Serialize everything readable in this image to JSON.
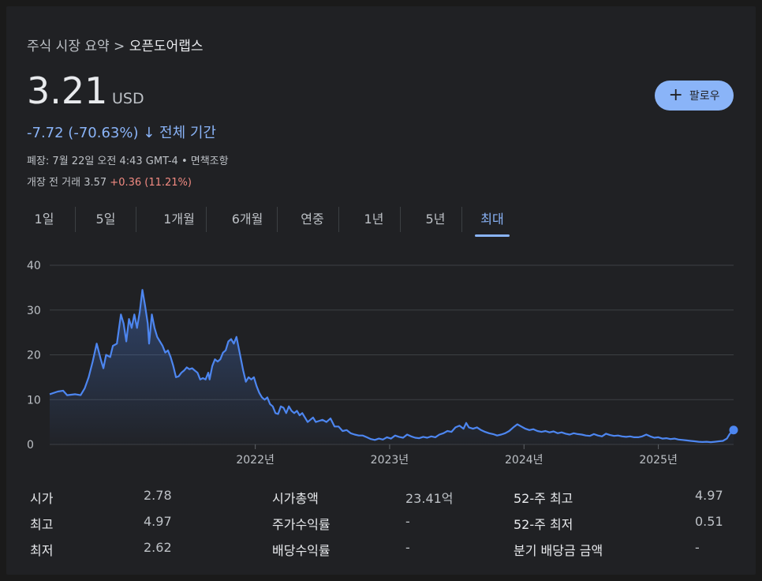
{
  "breadcrumb": {
    "prefix": "주식 시장 요약 >",
    "current": "오픈도어랩스"
  },
  "quote": {
    "price": "3.21",
    "currency": "USD",
    "change": "-7.72 (-70.63%)",
    "change_arrow": "↓",
    "period": "전체 기간",
    "closed_info": "폐장: 7월 22일 오전 4:43 GMT-4 • 면책조항",
    "premarket_prefix": "개장 전 거래 3.57",
    "premarket_change": "+0.36 (11.21%)"
  },
  "follow_button": {
    "icon": "plus-icon",
    "label": "팔로우"
  },
  "tabs": [
    "1일",
    "5일",
    "1개월",
    "6개월",
    "연중",
    "1년",
    "5년",
    "최대"
  ],
  "active_tab": "최대",
  "colors": {
    "accent": "#8ab4f8",
    "line": "#4d86f0",
    "positive": "#f28b82",
    "background": "#202124"
  },
  "chart_data": {
    "type": "area",
    "title": "",
    "xlabel": "",
    "ylabel": "",
    "ylim": [
      0,
      40
    ],
    "yticks": [
      0,
      10,
      20,
      30,
      40
    ],
    "xticks": [
      {
        "label": "2022년",
        "x": 2022.0
      },
      {
        "label": "2023년",
        "x": 2023.0
      },
      {
        "label": "2024년",
        "x": 2024.0
      },
      {
        "label": "2025년",
        "x": 2025.0
      }
    ],
    "xlim": [
      2020.47,
      2025.56
    ],
    "grid": true,
    "series": [
      {
        "points": [
          [
            2020.47,
            11.2
          ],
          [
            2020.53,
            11.8
          ],
          [
            2020.57,
            12.0
          ],
          [
            2020.6,
            11.0
          ],
          [
            2020.66,
            11.2
          ],
          [
            2020.7,
            11.0
          ],
          [
            2020.73,
            12.5
          ],
          [
            2020.76,
            15.0
          ],
          [
            2020.79,
            18.5
          ],
          [
            2020.82,
            22.5
          ],
          [
            2020.85,
            19.0
          ],
          [
            2020.87,
            17.0
          ],
          [
            2020.89,
            20.0
          ],
          [
            2020.92,
            19.5
          ],
          [
            2020.94,
            22.0
          ],
          [
            2020.97,
            22.5
          ],
          [
            2021.0,
            29.0
          ],
          [
            2021.02,
            27.0
          ],
          [
            2021.04,
            23.0
          ],
          [
            2021.06,
            28.0
          ],
          [
            2021.08,
            26.0
          ],
          [
            2021.1,
            29.0
          ],
          [
            2021.12,
            26.0
          ],
          [
            2021.14,
            29.5
          ],
          [
            2021.16,
            34.5
          ],
          [
            2021.18,
            31.0
          ],
          [
            2021.2,
            27.0
          ],
          [
            2021.21,
            22.5
          ],
          [
            2021.23,
            29.0
          ],
          [
            2021.25,
            26.0
          ],
          [
            2021.27,
            24.0
          ],
          [
            2021.29,
            23.0
          ],
          [
            2021.31,
            22.0
          ],
          [
            2021.33,
            20.5
          ],
          [
            2021.35,
            21.0
          ],
          [
            2021.37,
            19.5
          ],
          [
            2021.39,
            17.5
          ],
          [
            2021.41,
            15.0
          ],
          [
            2021.43,
            15.2
          ],
          [
            2021.45,
            16.0
          ],
          [
            2021.47,
            16.5
          ],
          [
            2021.49,
            17.2
          ],
          [
            2021.51,
            16.8
          ],
          [
            2021.53,
            17.0
          ],
          [
            2021.55,
            16.5
          ],
          [
            2021.57,
            16.0
          ],
          [
            2021.59,
            14.5
          ],
          [
            2021.61,
            14.8
          ],
          [
            2021.63,
            14.5
          ],
          [
            2021.65,
            16.0
          ],
          [
            2021.66,
            14.5
          ],
          [
            2021.68,
            17.5
          ],
          [
            2021.7,
            19.0
          ],
          [
            2021.72,
            18.5
          ],
          [
            2021.74,
            19.0
          ],
          [
            2021.76,
            20.5
          ],
          [
            2021.78,
            21.0
          ],
          [
            2021.8,
            23.0
          ],
          [
            2021.82,
            23.5
          ],
          [
            2021.84,
            22.5
          ],
          [
            2021.86,
            24.0
          ],
          [
            2021.88,
            21.0
          ],
          [
            2021.9,
            18.0
          ],
          [
            2021.91,
            16.5
          ],
          [
            2021.93,
            14.0
          ],
          [
            2021.95,
            15.0
          ],
          [
            2021.97,
            14.5
          ],
          [
            2021.99,
            15.0
          ],
          [
            2022.01,
            13.0
          ],
          [
            2022.03,
            11.5
          ],
          [
            2022.05,
            10.5
          ],
          [
            2022.07,
            10.0
          ],
          [
            2022.09,
            10.5
          ],
          [
            2022.11,
            9.0
          ],
          [
            2022.13,
            8.5
          ],
          [
            2022.15,
            7.0
          ],
          [
            2022.17,
            6.8
          ],
          [
            2022.19,
            8.5
          ],
          [
            2022.21,
            8.2
          ],
          [
            2022.23,
            7.0
          ],
          [
            2022.25,
            8.5
          ],
          [
            2022.27,
            7.5
          ],
          [
            2022.29,
            7.0
          ],
          [
            2022.31,
            7.5
          ],
          [
            2022.33,
            6.5
          ],
          [
            2022.35,
            7.0
          ],
          [
            2022.37,
            6.0
          ],
          [
            2022.39,
            5.0
          ],
          [
            2022.41,
            5.5
          ],
          [
            2022.43,
            6.0
          ],
          [
            2022.45,
            5.0
          ],
          [
            2022.47,
            5.2
          ],
          [
            2022.5,
            5.5
          ],
          [
            2022.53,
            5.0
          ],
          [
            2022.56,
            5.8
          ],
          [
            2022.59,
            4.0
          ],
          [
            2022.62,
            4.0
          ],
          [
            2022.65,
            3.0
          ],
          [
            2022.68,
            3.2
          ],
          [
            2022.71,
            2.5
          ],
          [
            2022.74,
            2.2
          ],
          [
            2022.77,
            2.0
          ],
          [
            2022.8,
            2.0
          ],
          [
            2022.83,
            1.6
          ],
          [
            2022.86,
            1.2
          ],
          [
            2022.89,
            1.0
          ],
          [
            2022.92,
            1.3
          ],
          [
            2022.95,
            1.1
          ],
          [
            2022.98,
            1.6
          ],
          [
            2023.01,
            1.3
          ],
          [
            2023.04,
            2.0
          ],
          [
            2023.07,
            1.7
          ],
          [
            2023.1,
            1.5
          ],
          [
            2023.13,
            2.2
          ],
          [
            2023.16,
            1.8
          ],
          [
            2023.19,
            1.5
          ],
          [
            2023.22,
            1.4
          ],
          [
            2023.25,
            1.7
          ],
          [
            2023.28,
            1.5
          ],
          [
            2023.31,
            1.8
          ],
          [
            2023.34,
            1.6
          ],
          [
            2023.37,
            2.2
          ],
          [
            2023.4,
            2.5
          ],
          [
            2023.43,
            3.0
          ],
          [
            2023.46,
            2.8
          ],
          [
            2023.49,
            3.8
          ],
          [
            2023.52,
            4.2
          ],
          [
            2023.55,
            3.5
          ],
          [
            2023.57,
            4.8
          ],
          [
            2023.59,
            3.8
          ],
          [
            2023.62,
            3.5
          ],
          [
            2023.65,
            3.8
          ],
          [
            2023.68,
            3.2
          ],
          [
            2023.71,
            2.8
          ],
          [
            2023.74,
            2.5
          ],
          [
            2023.77,
            2.3
          ],
          [
            2023.8,
            2.0
          ],
          [
            2023.83,
            2.2
          ],
          [
            2023.86,
            2.5
          ],
          [
            2023.89,
            3.0
          ],
          [
            2023.92,
            3.8
          ],
          [
            2023.95,
            4.5
          ],
          [
            2023.98,
            4.0
          ],
          [
            2024.01,
            3.5
          ],
          [
            2024.04,
            3.2
          ],
          [
            2024.07,
            3.4
          ],
          [
            2024.1,
            3.0
          ],
          [
            2024.13,
            2.8
          ],
          [
            2024.16,
            3.0
          ],
          [
            2024.19,
            2.7
          ],
          [
            2024.22,
            2.9
          ],
          [
            2024.25,
            2.5
          ],
          [
            2024.28,
            2.7
          ],
          [
            2024.31,
            2.4
          ],
          [
            2024.34,
            2.2
          ],
          [
            2024.37,
            2.5
          ],
          [
            2024.4,
            2.3
          ],
          [
            2024.43,
            2.2
          ],
          [
            2024.46,
            2.0
          ],
          [
            2024.49,
            1.9
          ],
          [
            2024.52,
            2.3
          ],
          [
            2024.55,
            2.0
          ],
          [
            2024.58,
            1.8
          ],
          [
            2024.61,
            2.4
          ],
          [
            2024.64,
            2.1
          ],
          [
            2024.67,
            1.9
          ],
          [
            2024.7,
            2.0
          ],
          [
            2024.73,
            1.8
          ],
          [
            2024.76,
            1.7
          ],
          [
            2024.79,
            1.8
          ],
          [
            2024.82,
            1.6
          ],
          [
            2024.85,
            1.6
          ],
          [
            2024.88,
            1.8
          ],
          [
            2024.91,
            2.2
          ],
          [
            2024.94,
            1.8
          ],
          [
            2024.97,
            1.5
          ],
          [
            2025.0,
            1.6
          ],
          [
            2025.03,
            1.3
          ],
          [
            2025.06,
            1.4
          ],
          [
            2025.09,
            1.2
          ],
          [
            2025.12,
            1.3
          ],
          [
            2025.15,
            1.1
          ],
          [
            2025.18,
            1.0
          ],
          [
            2025.21,
            0.9
          ],
          [
            2025.24,
            0.8
          ],
          [
            2025.27,
            0.7
          ],
          [
            2025.3,
            0.6
          ],
          [
            2025.33,
            0.55
          ],
          [
            2025.36,
            0.6
          ],
          [
            2025.39,
            0.51
          ],
          [
            2025.42,
            0.6
          ],
          [
            2025.45,
            0.7
          ],
          [
            2025.48,
            0.8
          ],
          [
            2025.51,
            1.3
          ],
          [
            2025.53,
            2.3
          ],
          [
            2025.56,
            3.21
          ]
        ]
      }
    ]
  },
  "stats": {
    "col1": [
      {
        "label": "시가",
        "value": "2.78"
      },
      {
        "label": "최고",
        "value": "4.97"
      },
      {
        "label": "최저",
        "value": "2.62"
      }
    ],
    "col2": [
      {
        "label": "시가총액",
        "value": "23.41억"
      },
      {
        "label": "주가수익률",
        "value": "-"
      },
      {
        "label": "배당수익률",
        "value": "-"
      }
    ],
    "col3": [
      {
        "label": "52-주 최고",
        "value": "4.97"
      },
      {
        "label": "52-주 최저",
        "value": "0.51"
      },
      {
        "label": "분기 배당금 금액",
        "value": "-"
      }
    ]
  }
}
